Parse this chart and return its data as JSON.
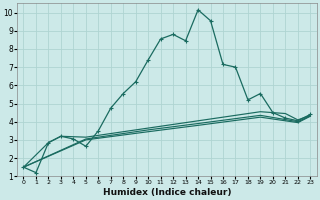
{
  "xlabel": "Humidex (Indice chaleur)",
  "bg_color": "#cce9e8",
  "grid_color": "#afd4d2",
  "line_color": "#1a6b60",
  "xlim": [
    -0.5,
    23.5
  ],
  "ylim": [
    1,
    10.5
  ],
  "xticks": [
    0,
    1,
    2,
    3,
    4,
    5,
    6,
    7,
    8,
    9,
    10,
    11,
    12,
    13,
    14,
    15,
    16,
    17,
    18,
    19,
    20,
    21,
    22,
    23
  ],
  "yticks": [
    1,
    2,
    3,
    4,
    5,
    6,
    7,
    8,
    9,
    10
  ],
  "series1": [
    [
      0,
      1.5
    ],
    [
      1,
      1.2
    ],
    [
      2,
      2.85
    ],
    [
      3,
      3.2
    ],
    [
      4,
      3.05
    ],
    [
      5,
      2.65
    ],
    [
      6,
      3.5
    ],
    [
      7,
      4.75
    ],
    [
      8,
      5.55
    ],
    [
      9,
      6.2
    ],
    [
      10,
      7.4
    ],
    [
      11,
      8.55
    ],
    [
      12,
      8.8
    ],
    [
      13,
      8.45
    ],
    [
      14,
      10.15
    ],
    [
      15,
      9.55
    ],
    [
      16,
      7.15
    ],
    [
      17,
      7.0
    ],
    [
      18,
      5.2
    ],
    [
      19,
      5.55
    ],
    [
      20,
      4.5
    ],
    [
      21,
      4.2
    ],
    [
      22,
      4.05
    ],
    [
      23,
      4.4
    ]
  ],
  "series2": [
    [
      0,
      1.5
    ],
    [
      2,
      2.85
    ],
    [
      3,
      3.2
    ],
    [
      5,
      3.15
    ],
    [
      10,
      3.65
    ],
    [
      14,
      4.05
    ],
    [
      19,
      4.55
    ],
    [
      21,
      4.45
    ],
    [
      22,
      4.1
    ],
    [
      23,
      4.35
    ]
  ],
  "series3": [
    [
      0,
      1.5
    ],
    [
      5,
      3.0
    ],
    [
      10,
      3.45
    ],
    [
      14,
      3.8
    ],
    [
      19,
      4.25
    ],
    [
      22,
      3.95
    ],
    [
      23,
      4.3
    ]
  ],
  "series4": [
    [
      0,
      1.5
    ],
    [
      5,
      3.05
    ],
    [
      10,
      3.55
    ],
    [
      14,
      3.9
    ],
    [
      19,
      4.35
    ],
    [
      22,
      4.0
    ],
    [
      23,
      4.32
    ]
  ]
}
